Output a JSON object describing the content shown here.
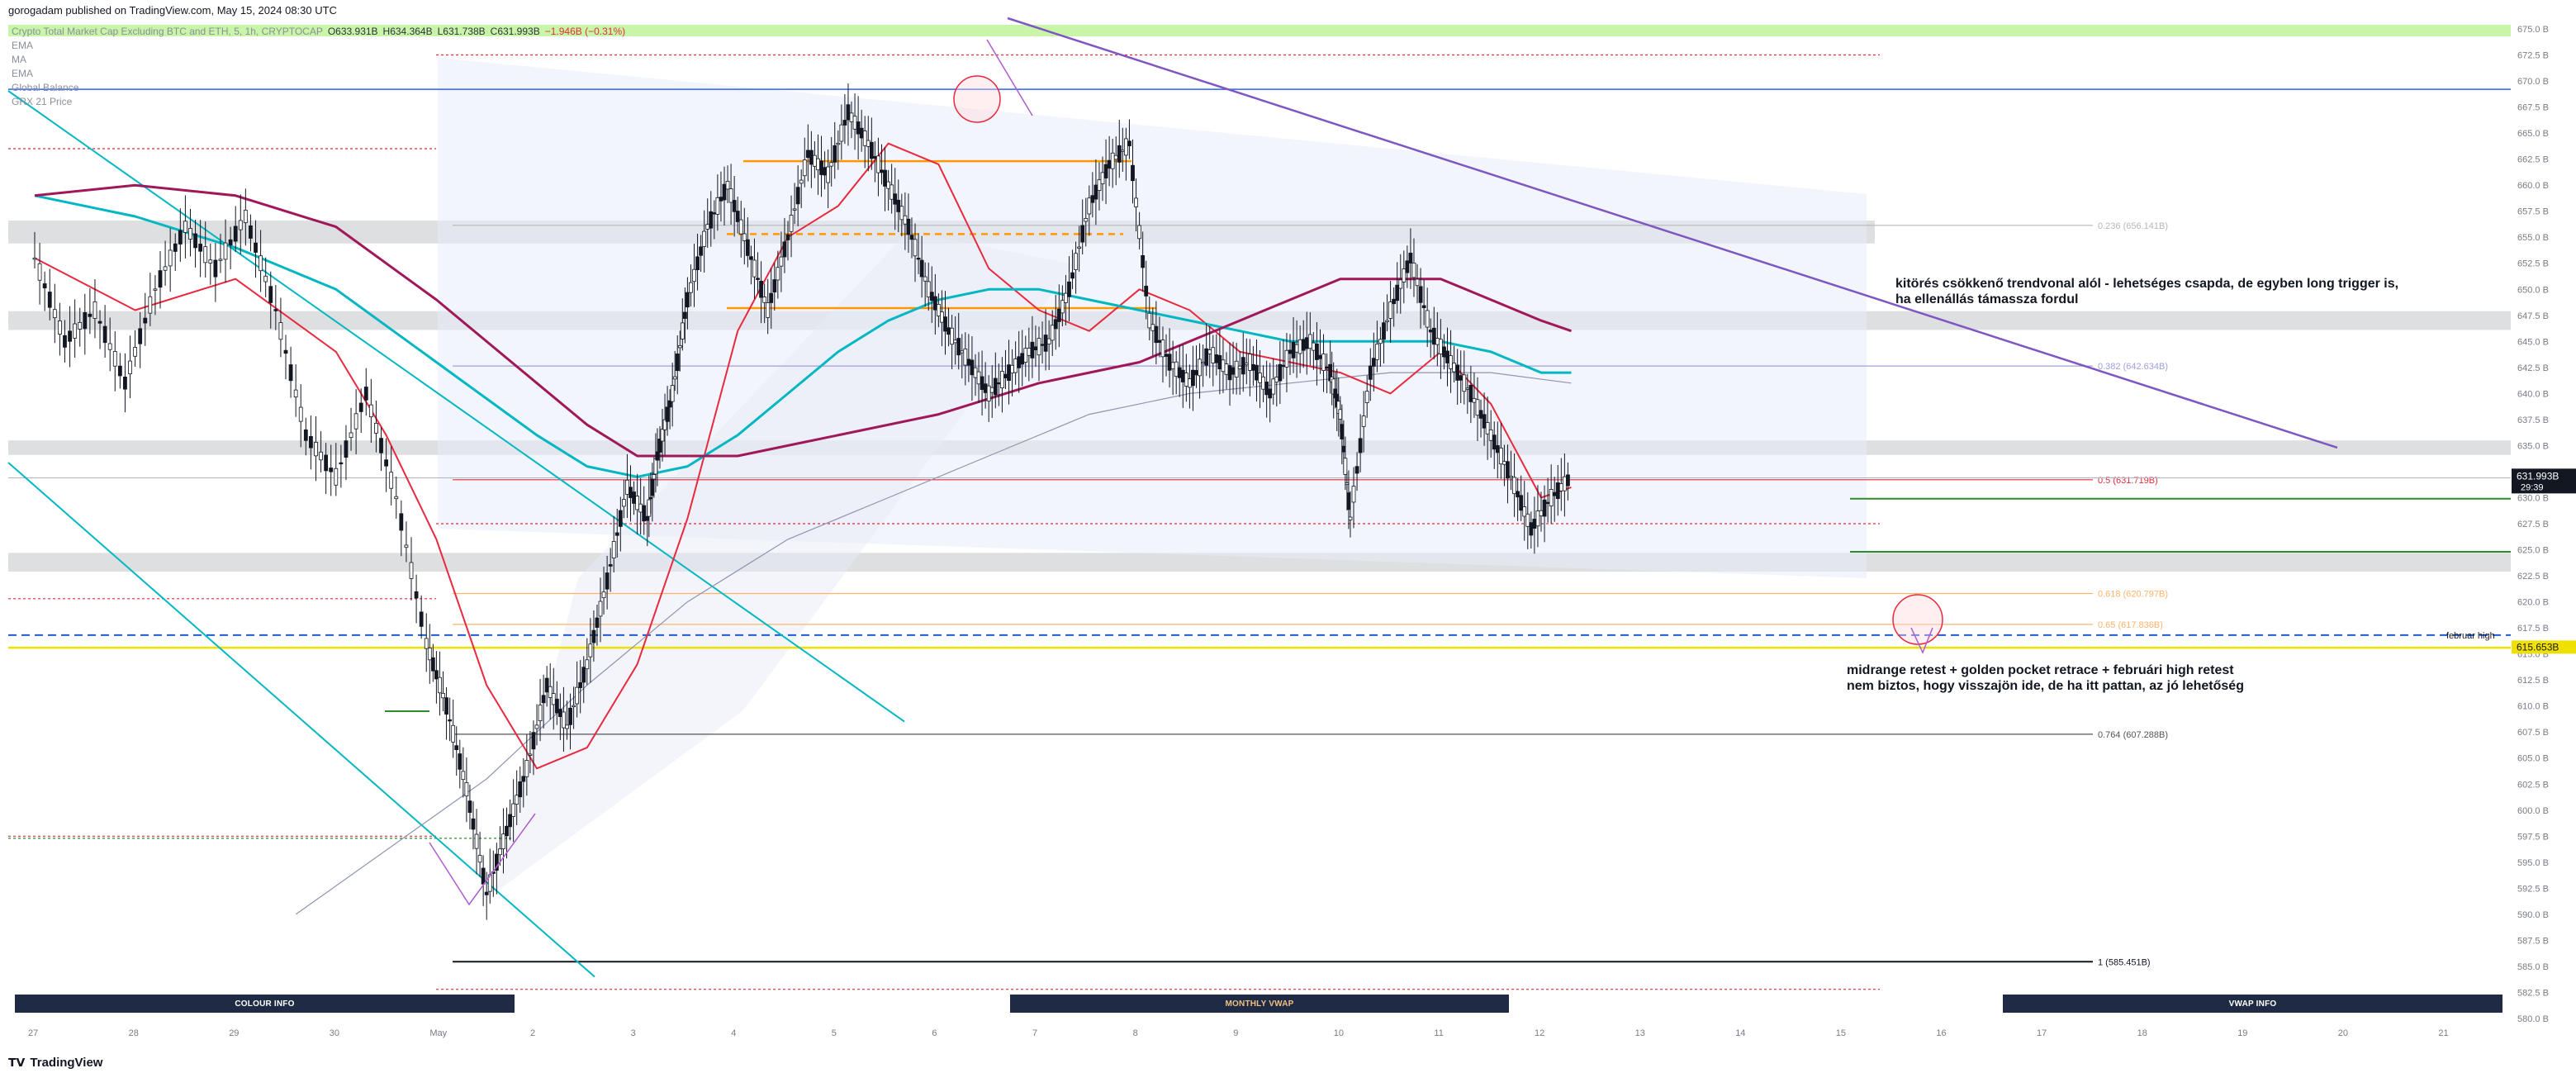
{
  "header": {
    "published": "gorogadam published on TradingView.com, May 15, 2024 08:30 UTC"
  },
  "legend": {
    "symbol": "Crypto Total Market Cap Excluding BTC and ETH, 5, 1h, CRYPTOCAP",
    "open": "O633.931B",
    "high": "H634.364B",
    "low": "L631.738B",
    "close": "C631.993B",
    "change": "−1.946B (−0.31%)",
    "indicators": [
      "EMA",
      "MA",
      "EMA",
      "Global Balance",
      "GRX 21 Price"
    ]
  },
  "annotations": {
    "breakout_line1": "kitörés csökkenő trendvonal alól - lehetséges csapda, de egyben long trigger is,",
    "breakout_line2": "ha ellenállás támassza fordul",
    "retest_line1": "midrange retest + golden pocket retrace + februári high retest",
    "retest_line2": "nem biztos, hogy visszajön ide, de ha itt pattan, az jó lehetőség",
    "february_high": "februar high"
  },
  "fib_labels": {
    "f236": "0.236 (656.141B)",
    "f382": "0.382 (642.634B)",
    "f5": "0.5 (631.719B)",
    "f618": "0.618 (620.797B)",
    "f65": "0.65 (617.836B)",
    "f764": "0.764 (607.288B)",
    "f1": "1 (585.451B)"
  },
  "price_tags": {
    "last": "631.993B",
    "countdown": "29:39",
    "feb_high": "615.653B"
  },
  "info_boxes": {
    "colour": "COLOUR INFO",
    "monthly": "MONTHLY VWAP",
    "vwap": "VWAP INFO"
  },
  "footer": {
    "brand": "TradingView"
  },
  "colors": {
    "candle": "#131722",
    "ema_fast": "#e8293f",
    "ema_mid": "#00b7c3",
    "ema_slow": "#a0185a",
    "trend": "#7e57c2",
    "orange": "#ff9800",
    "green": "#2e8b2e",
    "yellow": "#f0e000",
    "blue_dash": "#1e5bd6",
    "vwap": "#8f95b2",
    "gray_band": "#d8d9dc",
    "green_band": "#c8f5a8"
  },
  "chart_data": {
    "type": "line",
    "subtype": "candlestick",
    "ylabel": "",
    "xlabel": "",
    "ylim": [
      580.0,
      675.0
    ],
    "y_ticks": [
      "675.0",
      "672.5",
      "670.0",
      "667.5",
      "665.0",
      "662.5",
      "660.0",
      "657.5",
      "655.0",
      "652.5",
      "650.0",
      "647.5",
      "645.0",
      "642.5",
      "640.0",
      "637.5",
      "635.0",
      "632.5",
      "630.0",
      "627.5",
      "625.0",
      "622.5",
      "620.0",
      "617.5",
      "615.0",
      "612.5",
      "610.0",
      "607.5",
      "605.0",
      "602.5",
      "600.0",
      "597.5",
      "595.0",
      "592.5",
      "590.0",
      "587.5",
      "585.0",
      "582.5",
      "580.0"
    ],
    "x_ticks": [
      "27",
      "28",
      "29",
      "30",
      "May",
      "2",
      "3",
      "4",
      "5",
      "6",
      "7",
      "8",
      "9",
      "10",
      "11",
      "12",
      "13",
      "14",
      "15",
      "16",
      "17",
      "18",
      "19",
      "20",
      "21"
    ],
    "price_series": {
      "name": "",
      "x": [
        0,
        0.3,
        0.6,
        0.9,
        1.2,
        1.5,
        1.8,
        2.1,
        2.4,
        2.7,
        3.0,
        3.3,
        3.6,
        3.9,
        4.1,
        4.3,
        4.5,
        4.7,
        4.9,
        5.1,
        5.3,
        5.5,
        5.7,
        5.9,
        6.1,
        6.2,
        6.35,
        6.5,
        6.7,
        6.9,
        7.1,
        7.3,
        7.5,
        7.7,
        7.9,
        8.1,
        8.3,
        8.5,
        8.7,
        8.9,
        9.1,
        9.3,
        9.5,
        9.7,
        9.9,
        10.1,
        10.3,
        10.5,
        10.7,
        10.9,
        11.1,
        11.3,
        11.5,
        11.7,
        11.9,
        12.1,
        12.3,
        12.5,
        12.7,
        12.9,
        13.0,
        13.1,
        13.3,
        13.5,
        13.7,
        13.9,
        14.1,
        14.3,
        14.5,
        14.7,
        14.9,
        15.1,
        15.3
      ],
      "y": [
        653,
        645,
        648,
        641,
        650,
        656,
        652,
        657,
        648,
        636,
        632,
        640,
        630,
        616,
        610,
        602,
        592,
        598,
        604,
        612,
        608,
        614,
        622,
        631,
        628,
        634,
        640,
        649,
        656,
        660,
        654,
        648,
        655,
        663,
        661,
        667,
        664,
        660,
        656,
        650,
        646,
        643,
        640,
        642,
        644,
        645,
        650,
        658,
        662,
        664,
        647,
        643,
        641,
        644,
        642,
        643,
        640,
        644,
        645,
        642,
        638,
        628,
        642,
        648,
        653,
        646,
        643,
        640,
        636,
        632,
        627,
        630,
        632
      ],
      "note": "approximate hourly close path; x in days from Apr 27 (0 = Apr 27)"
    },
    "series": [
      {
        "name": "",
        "role": "ema-fast",
        "x": [
          0,
          1,
          2,
          3,
          3.5,
          4,
          4.5,
          5,
          5.5,
          6,
          6.5,
          7,
          7.5,
          8,
          8.5,
          9,
          9.5,
          10,
          10.5,
          11,
          11.5,
          12,
          12.5,
          13,
          13.5,
          14,
          14.5,
          15,
          15.3
        ],
        "y": [
          653,
          648,
          651,
          644,
          636,
          626,
          612,
          604,
          606,
          614,
          628,
          646,
          655,
          658,
          664,
          662,
          652,
          648,
          646,
          650,
          648,
          644,
          643,
          642,
          640,
          644,
          639,
          630,
          631
        ]
      },
      {
        "name": "",
        "role": "ema-mid",
        "x": [
          0,
          1,
          2,
          3,
          4,
          5,
          5.5,
          6,
          6.5,
          7,
          7.5,
          8,
          8.5,
          9,
          9.5,
          10,
          10.5,
          11,
          11.5,
          12,
          12.5,
          13,
          13.5,
          14,
          14.5,
          15,
          15.3
        ],
        "y": [
          659,
          657,
          654,
          650,
          643,
          636,
          633,
          632,
          633,
          636,
          640,
          644,
          647,
          649,
          650,
          650,
          649,
          648,
          647,
          646,
          645,
          645,
          645,
          645,
          644,
          642,
          642
        ]
      },
      {
        "name": "",
        "role": "ema-slow",
        "x": [
          0,
          1,
          2,
          3,
          4,
          5,
          5.5,
          6,
          6.5,
          7,
          7.5,
          8,
          9,
          10,
          11,
          12,
          13,
          14,
          14.5,
          15,
          15.3
        ],
        "y": [
          659,
          660,
          659,
          656,
          649,
          641,
          637,
          634,
          634,
          634,
          635,
          636,
          638,
          641,
          643,
          647,
          651,
          651,
          649,
          647,
          646
        ]
      }
    ],
    "fib_levels": [
      {
        "level": "0.236",
        "value": 656.141
      },
      {
        "level": "0.382",
        "value": 642.634
      },
      {
        "level": "0.5",
        "value": 631.719
      },
      {
        "level": "0.618",
        "value": 620.797
      },
      {
        "level": "0.65",
        "value": 617.836
      },
      {
        "level": "0.764",
        "value": 607.288
      },
      {
        "level": "1",
        "value": 585.451
      }
    ],
    "last_price": 631.993,
    "february_high": 615.653,
    "grid": false,
    "legend_position": "top-left"
  }
}
